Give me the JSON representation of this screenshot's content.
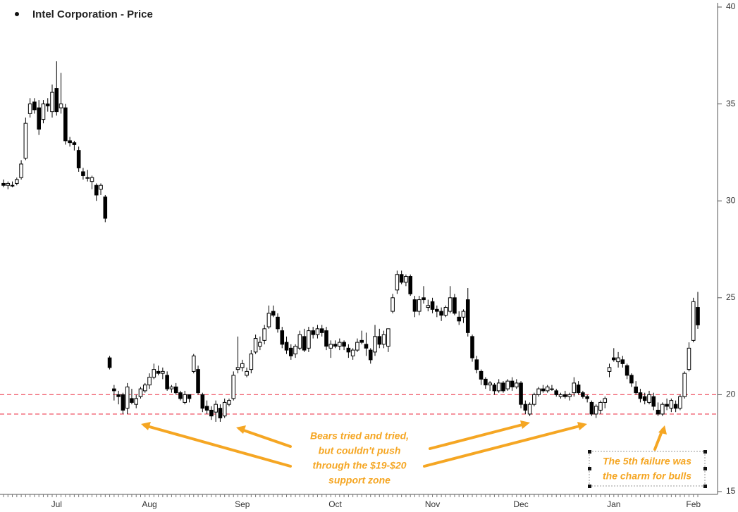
{
  "chart_data": {
    "type": "candlestick",
    "series": [
      {
        "name": "Intel Corporation - Price",
        "color": "#000000",
        "open": [
          30.9,
          30.8,
          30.8,
          30.9,
          31.2,
          32.2,
          34.5,
          35.1,
          34.8,
          34.2,
          35.0,
          34.6,
          35.8,
          34.8,
          34.8,
          33.1,
          33.0,
          32.6,
          31.5,
          31.2,
          31.0,
          30.8,
          30.6,
          30.2,
          21.9,
          20.3,
          20.0,
          20.0,
          19.3,
          19.8,
          19.5,
          19.9,
          20.2,
          20.5,
          20.9,
          21.2,
          21.1,
          21.0,
          20.3,
          20.4,
          20.1,
          19.6,
          20.0,
          21.2,
          21.3,
          20.0,
          19.4,
          19.2,
          19.1,
          19.3,
          18.9,
          19.5,
          19.8,
          21.3,
          21.4,
          21.0,
          21.3,
          22.2,
          22.5,
          22.8,
          23.5,
          24.3,
          24.0,
          23.3,
          22.7,
          22.4,
          22.1,
          22.4,
          23.0,
          22.4,
          23.3,
          23.1,
          23.4,
          23.3,
          22.4,
          22.6,
          22.5,
          22.7,
          22.4,
          22.0,
          22.3,
          22.8,
          22.6,
          22.3,
          22.2,
          23.0,
          22.6,
          22.5,
          24.3,
          25.4,
          26.2,
          25.8,
          26.1,
          24.9,
          24.3,
          25.0,
          24.5,
          24.8,
          24.4,
          24.3,
          24.1,
          24.3,
          25.0,
          24.0,
          24.0,
          24.9,
          23.0,
          21.8,
          21.2,
          20.8,
          20.5,
          20.5,
          20.2,
          20.6,
          20.3,
          20.7,
          20.4,
          20.6,
          19.5,
          19.0,
          19.5,
          20.0,
          20.3,
          20.2,
          20.3,
          20.2,
          19.9,
          20.0,
          19.9,
          20.1,
          20.5,
          20.1,
          19.9,
          19.6,
          19.0,
          19.2,
          19.6,
          21.2,
          21.9,
          21.7,
          21.8,
          21.5,
          21.0,
          20.4,
          20.1,
          19.9,
          19.6,
          19.9,
          19.2,
          19.0,
          19.5,
          19.3,
          19.5,
          19.3,
          19.9,
          21.3,
          22.8,
          24.5
        ],
        "high": [
          31.1,
          31.0,
          31.0,
          31.2,
          32.1,
          34.3,
          35.3,
          35.3,
          35.2,
          35.2,
          35.3,
          36.0,
          37.2,
          36.6,
          35.0,
          33.3,
          33.1,
          32.8,
          31.7,
          31.6,
          31.3,
          30.9,
          30.9,
          30.3,
          22.0,
          20.5,
          20.2,
          20.1,
          20.6,
          20.3,
          20.0,
          20.4,
          20.6,
          21.1,
          21.6,
          21.5,
          21.4,
          21.2,
          20.5,
          20.6,
          20.2,
          20.2,
          20.0,
          22.1,
          21.5,
          20.1,
          19.7,
          19.4,
          19.7,
          19.5,
          19.8,
          19.8,
          21.2,
          23.0,
          21.8,
          21.4,
          22.3,
          23.1,
          23.0,
          23.6,
          24.6,
          24.6,
          24.2,
          23.5,
          23.0,
          22.6,
          22.6,
          23.3,
          23.4,
          23.5,
          23.5,
          23.6,
          23.6,
          23.5,
          22.8,
          22.8,
          22.9,
          22.8,
          22.6,
          22.4,
          22.9,
          23.3,
          23.2,
          22.4,
          23.6,
          23.4,
          23.3,
          23.4,
          25.2,
          26.4,
          26.4,
          26.2,
          26.2,
          25.1,
          25.1,
          25.6,
          24.9,
          25.0,
          24.6,
          24.5,
          24.6,
          25.6,
          25.2,
          24.3,
          24.4,
          25.5,
          23.1,
          22.0,
          21.3,
          20.9,
          20.7,
          20.6,
          20.8,
          20.7,
          20.8,
          20.9,
          20.8,
          20.7,
          19.7,
          19.6,
          20.1,
          20.4,
          20.5,
          20.5,
          20.5,
          20.3,
          20.1,
          20.2,
          20.1,
          20.9,
          20.7,
          20.2,
          20.0,
          19.7,
          19.5,
          19.7,
          19.9,
          21.6,
          22.4,
          22.2,
          22.0,
          21.6,
          21.1,
          20.7,
          20.3,
          20.1,
          20.2,
          20.1,
          19.6,
          19.6,
          19.8,
          19.8,
          19.7,
          20.0,
          21.2,
          22.7,
          25.0,
          25.3
        ],
        "low": [
          30.7,
          30.6,
          30.7,
          30.8,
          31.1,
          32.1,
          34.3,
          34.5,
          33.4,
          34.0,
          34.6,
          34.3,
          34.4,
          34.5,
          32.9,
          32.8,
          32.6,
          31.5,
          31.1,
          31.0,
          30.6,
          30.0,
          30.3,
          28.9,
          21.3,
          19.7,
          19.5,
          19.0,
          19.0,
          19.5,
          19.3,
          19.8,
          20.1,
          20.3,
          20.8,
          21.0,
          20.8,
          20.2,
          20.1,
          20.0,
          19.7,
          19.5,
          19.6,
          21.1,
          20.0,
          19.1,
          19.0,
          18.7,
          18.6,
          18.6,
          18.8,
          19.4,
          19.7,
          21.1,
          21.2,
          20.9,
          21.1,
          22.1,
          22.3,
          22.6,
          23.4,
          24.0,
          23.2,
          22.4,
          22.1,
          21.8,
          21.9,
          22.3,
          22.2,
          22.2,
          22.9,
          22.9,
          23.0,
          22.3,
          21.9,
          22.4,
          22.3,
          22.3,
          21.9,
          21.8,
          22.2,
          22.6,
          22.0,
          21.6,
          22.0,
          22.4,
          22.4,
          22.2,
          24.2,
          25.2,
          25.7,
          25.6,
          25.1,
          24.0,
          24.1,
          24.7,
          24.3,
          24.2,
          24.0,
          23.8,
          24.0,
          24.2,
          24.1,
          23.6,
          23.7,
          23.0,
          21.7,
          21.1,
          20.5,
          20.3,
          20.2,
          20.0,
          20.1,
          20.1,
          20.2,
          20.2,
          20.3,
          19.3,
          19.0,
          18.9,
          19.4,
          19.9,
          20.1,
          20.1,
          20.2,
          19.9,
          19.8,
          19.8,
          19.7,
          19.9,
          20.0,
          19.8,
          19.6,
          18.9,
          18.8,
          19.0,
          19.3,
          20.9,
          21.7,
          21.4,
          21.4,
          20.8,
          20.4,
          20.0,
          19.6,
          19.5,
          19.5,
          19.2,
          18.9,
          18.9,
          19.2,
          19.1,
          19.1,
          19.2,
          19.8,
          21.2,
          22.7,
          23.4
        ],
        "close": [
          30.8,
          30.9,
          30.8,
          31.1,
          31.9,
          34.0,
          35.0,
          34.7,
          33.7,
          35.0,
          34.9,
          35.6,
          34.6,
          35.0,
          33.1,
          33.0,
          32.9,
          31.7,
          31.3,
          31.2,
          31.2,
          30.3,
          30.8,
          29.1,
          21.4,
          20.2,
          19.9,
          19.2,
          20.4,
          19.6,
          19.8,
          20.3,
          20.5,
          20.9,
          21.3,
          21.1,
          21.2,
          20.3,
          20.4,
          20.1,
          19.8,
          20.0,
          19.8,
          22.0,
          20.1,
          19.3,
          19.2,
          18.9,
          19.5,
          18.8,
          19.6,
          19.7,
          21.0,
          21.4,
          21.6,
          21.2,
          22.1,
          22.9,
          22.7,
          23.4,
          24.2,
          24.1,
          23.4,
          22.6,
          22.3,
          22.0,
          22.5,
          23.1,
          22.3,
          23.3,
          23.1,
          23.4,
          23.2,
          22.5,
          22.6,
          22.5,
          22.7,
          22.5,
          22.2,
          22.3,
          22.7,
          22.7,
          22.4,
          21.8,
          23.0,
          22.6,
          23.1,
          23.4,
          25.0,
          26.2,
          25.8,
          26.1,
          25.2,
          24.3,
          24.9,
          24.9,
          24.6,
          24.4,
          24.3,
          24.1,
          24.5,
          25.0,
          24.2,
          23.8,
          24.3,
          23.2,
          21.9,
          21.3,
          20.8,
          20.5,
          20.6,
          20.2,
          20.6,
          20.2,
          20.7,
          20.4,
          20.6,
          19.5,
          19.2,
          19.5,
          20.0,
          20.3,
          20.2,
          20.4,
          20.3,
          20.0,
          20.0,
          19.9,
          20.0,
          20.6,
          20.1,
          19.9,
          19.8,
          19.0,
          19.4,
          19.6,
          19.8,
          21.4,
          21.8,
          21.9,
          21.6,
          21.0,
          20.6,
          20.1,
          19.8,
          19.7,
          20.0,
          19.4,
          19.0,
          19.5,
          19.4,
          19.7,
          19.3,
          19.9,
          21.1,
          22.4,
          24.8,
          23.6
        ]
      }
    ],
    "categories": [
      null,
      null,
      null,
      null,
      null,
      null,
      null,
      null,
      null,
      null,
      null,
      null,
      "Jul",
      null,
      null,
      null,
      null,
      null,
      null,
      null,
      null,
      null,
      null,
      null,
      null,
      null,
      null,
      null,
      null,
      null,
      null,
      null,
      null,
      "Aug",
      null,
      null,
      null,
      null,
      null,
      null,
      null,
      null,
      null,
      null,
      null,
      null,
      null,
      null,
      null,
      null,
      null,
      null,
      null,
      null,
      "Sep",
      null,
      null,
      null,
      null,
      null,
      null,
      null,
      null,
      null,
      null,
      null,
      null,
      null,
      null,
      null,
      null,
      null,
      null,
      null,
      null,
      "Oct",
      null,
      null,
      null,
      null,
      null,
      null,
      null,
      null,
      null,
      null,
      null,
      null,
      null,
      null,
      null,
      null,
      null,
      null,
      null,
      null,
      null,
      "Nov",
      null,
      null,
      null,
      null,
      null,
      null,
      null,
      null,
      null,
      null,
      null,
      null,
      null,
      null,
      null,
      null,
      null,
      null,
      null,
      "Dec",
      null,
      null,
      null,
      null,
      null,
      null,
      null,
      null,
      null,
      null,
      null,
      null,
      null,
      null,
      null,
      null,
      null,
      null,
      null,
      null,
      "Jan",
      null,
      null,
      null,
      null,
      null,
      null,
      null,
      null,
      null,
      null,
      null,
      null,
      null,
      null,
      null,
      null,
      null,
      "Feb",
      null
    ],
    "ylim": [
      15,
      40
    ],
    "yticks": [
      15,
      20,
      25,
      30,
      35,
      40
    ],
    "grid": false,
    "hlines": [
      {
        "value": 20,
        "color": "#f06070"
      },
      {
        "value": 19,
        "color": "#f06070"
      }
    ],
    "annotations": [
      {
        "lines": [
          "Bears tried and tried,",
          "but couldn't push",
          "through the $19-$20",
          "support zone"
        ],
        "color": "#f5a623"
      },
      {
        "lines": [
          "The 5th failure was",
          "the charm for bulls"
        ],
        "color": "#f5a623"
      }
    ]
  }
}
